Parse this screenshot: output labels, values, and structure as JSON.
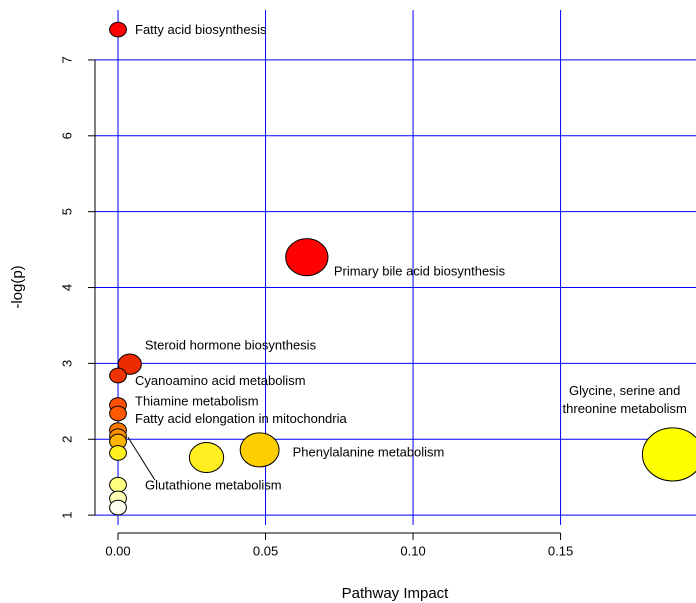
{
  "chart_data": {
    "type": "scatter",
    "x_label": "Pathway Impact",
    "y_label": "-log(p)",
    "x": [
      0,
      0.064,
      0.004,
      0,
      0,
      0,
      0,
      0,
      0,
      0.048,
      0.03,
      0,
      0.188,
      0,
      0,
      0
    ],
    "y": [
      7.4,
      4.4,
      2.99,
      2.84,
      2.45,
      2.34,
      2.12,
      2.04,
      1.97,
      1.86,
      1.76,
      1.82,
      1.8,
      1.4,
      1.22,
      1.1
    ],
    "colors": [
      "#ff0000",
      "#ff0000",
      "#ee2a00",
      "#ee3300",
      "#ff4f00",
      "#ff5a00",
      "#ff7a00",
      "#ff9000",
      "#ffb400",
      "#ffce00",
      "#ffee20",
      "#fff020",
      "#ffff00",
      "#ffff80",
      "#ffffb8",
      "#fffff0"
    ],
    "labels": [
      "Fatty acid biosynthesis",
      "Primary bile acid biosynthesis",
      "Steroid hormone biosynthesis",
      "Cyanoamino acid metabolism",
      "Thiamine metabolism",
      "Fatty acid elongation in mitochondria",
      null,
      "Glutathione metabolism",
      null,
      "Phenylalanine metabolism",
      null,
      null,
      [
        "Glycine, serine and",
        "threonine metabolism"
      ],
      null,
      null,
      null
    ],
    "xlim": [
      -0.0078,
      0.1959
    ],
    "ylim": [
      0.87,
      7.79
    ],
    "xticks": [
      {
        "value": 0,
        "label": "0.00"
      },
      {
        "value": 0.05,
        "label": "0.05"
      },
      {
        "value": 0.1,
        "label": "0.10"
      },
      {
        "value": 0.15,
        "label": "0.15"
      }
    ],
    "yticks": [
      1,
      2,
      3,
      4,
      5,
      6,
      7
    ],
    "grid": true,
    "grid_color": "#0000ff"
  }
}
